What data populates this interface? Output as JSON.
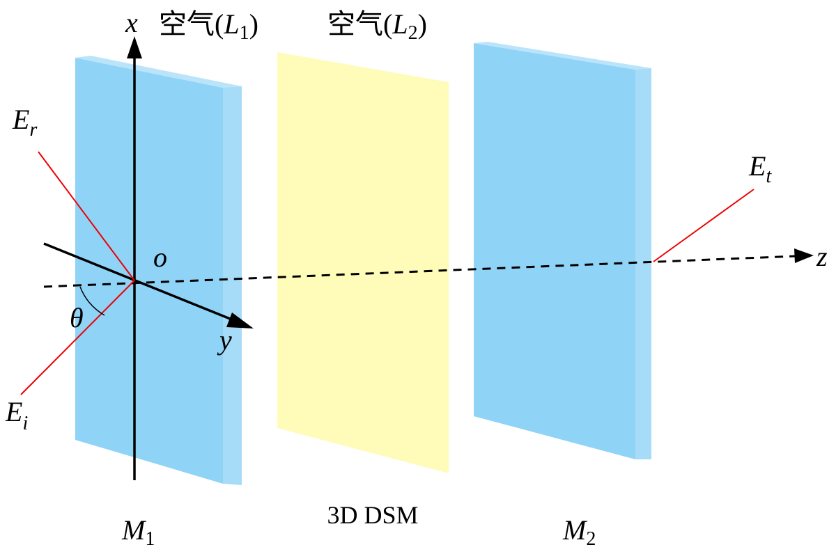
{
  "axes": {
    "x": "x",
    "y": "y",
    "z": "z",
    "origin": "o",
    "angle": "θ"
  },
  "regions": [
    {
      "prefix": "空气(",
      "symbol": "L",
      "sub": "1",
      "suffix": ")"
    },
    {
      "prefix": "空气(",
      "symbol": "L",
      "sub": "2",
      "suffix": ")"
    }
  ],
  "fields": {
    "reflected": {
      "base": "E",
      "sub": "r"
    },
    "incident": {
      "base": "E",
      "sub": "i"
    },
    "transmitted": {
      "base": "E",
      "sub": "t"
    }
  },
  "layers": [
    {
      "base": "M",
      "sub": "1"
    },
    {
      "label": "3D DSM"
    },
    {
      "base": "M",
      "sub": "2"
    }
  ]
}
